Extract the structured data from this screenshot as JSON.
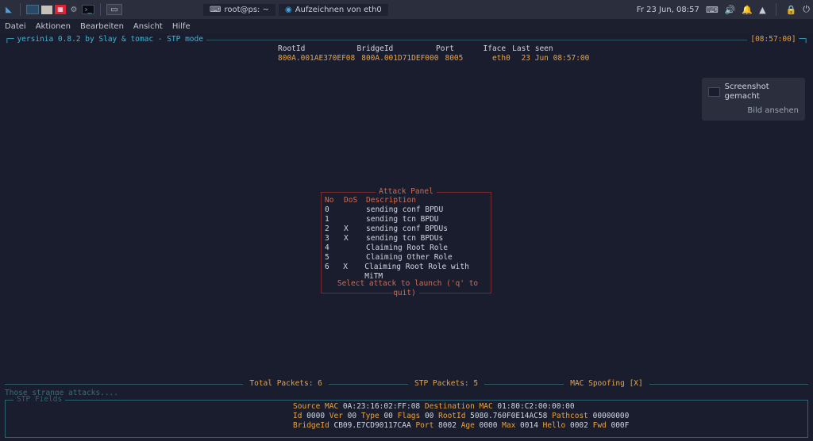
{
  "taskbar": {
    "windows": [
      {
        "icon": "⌨",
        "label": "root@ps: ~"
      },
      {
        "icon": "🦈",
        "label": "Aufzeichnen von eth0"
      }
    ],
    "clock": "Fr 23 Jun, 08:57"
  },
  "menubar": [
    "Datei",
    "Aktionen",
    "Bearbeiten",
    "Ansicht",
    "Hilfe"
  ],
  "title": "yersinia 0.8.2 by Slay & tomac - STP mode",
  "title_time": "[08:57:00]",
  "header_cols": [
    "RootId          ",
    "BridgeId        ",
    "Port",
    "     Iface",
    "Last seen"
  ],
  "data_cols": [
    "800A.001AE370EF08",
    "800A.001D71DEF000",
    "8005",
    "     eth0 ",
    "23 Jun 08:57:00"
  ],
  "attack_panel": {
    "title": "Attack Panel",
    "head": {
      "c1": "No",
      "c2": "DoS",
      "c3": "Description"
    },
    "rows": [
      {
        "no": "0",
        "dos": "",
        "desc": "sending conf BPDU"
      },
      {
        "no": "1",
        "dos": "",
        "desc": "sending tcn BPDU"
      },
      {
        "no": "2",
        "dos": "X",
        "desc": "sending conf BPDUs"
      },
      {
        "no": "3",
        "dos": "X",
        "desc": "sending tcn BPDUs"
      },
      {
        "no": "4",
        "dos": "",
        "desc": "Claiming Root Role"
      },
      {
        "no": "5",
        "dos": "",
        "desc": "Claiming Other Role"
      },
      {
        "no": "6",
        "dos": "X",
        "desc": "Claiming Root Role with MiTM"
      }
    ],
    "footer": "Select attack to launch ('q' to quit)"
  },
  "stats": {
    "total": "Total Packets: 6",
    "stp": "STP Packets: 5",
    "mac": "MAC Spoofing [X]"
  },
  "strange": "Those strange attacks....",
  "stp_fields": {
    "title": "STP Fields",
    "lines": [
      [
        [
          "Source MAC",
          "k"
        ],
        [
          " 0A:23:16:02:FF:08 ",
          "v"
        ],
        [
          "Destination MAC",
          "k"
        ],
        [
          " 01:80:C2:00:00:00",
          "v"
        ]
      ],
      [
        [
          "Id",
          "k"
        ],
        [
          " 0000 ",
          "v"
        ],
        [
          "Ver",
          "k"
        ],
        [
          " 00 ",
          "v"
        ],
        [
          "Type",
          "k"
        ],
        [
          " 00 ",
          "v"
        ],
        [
          "Flags",
          "k"
        ],
        [
          " 00 ",
          "v"
        ],
        [
          "RootId",
          "k"
        ],
        [
          " 5080.760F0E14AC58 ",
          "v"
        ],
        [
          "Pathcost",
          "k"
        ],
        [
          " 00000000",
          "v"
        ]
      ],
      [
        [
          "BridgeId",
          "k"
        ],
        [
          " CB09.E7CD90117CAA ",
          "v"
        ],
        [
          "Port",
          "k"
        ],
        [
          " 8002 ",
          "v"
        ],
        [
          "Age",
          "k"
        ],
        [
          " 0000 ",
          "v"
        ],
        [
          "Max",
          "k"
        ],
        [
          " 0014 ",
          "v"
        ],
        [
          "Hello",
          "k"
        ],
        [
          " 0002 ",
          "v"
        ],
        [
          "Fwd",
          "k"
        ],
        [
          " 000F",
          "v"
        ]
      ]
    ]
  },
  "toast": {
    "title": "Screenshot gemacht",
    "action": "Bild ansehen"
  },
  "colors": {
    "bg": "#1a1d2e",
    "bar": "#2b2e3d",
    "cyan": "#3bb9d6",
    "cyan_dim": "#2a6470",
    "orange": "#e8a33e",
    "red": "#7a2a2a",
    "red_text": "#d46b4e",
    "text": "#cfd6e0"
  }
}
